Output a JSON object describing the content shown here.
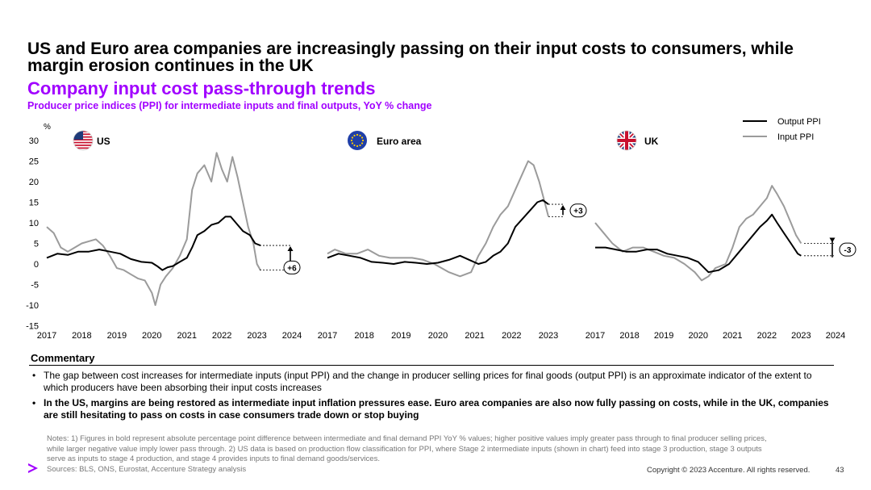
{
  "title": "US and Euro area companies are increasingly passing on their input costs to consumers, while margin erosion continues in the UK",
  "subtitle": "Company input cost pass-through trends",
  "chart_subtitle": "Producer price indices (PPI) for intermediate inputs and final outputs, YoY % change",
  "colors": {
    "accent": "#a100ff",
    "output": "#000000",
    "input": "#9b9b9b"
  },
  "chart_data": {
    "type": "line",
    "unit_label": "%",
    "ylim": [
      -15,
      30
    ],
    "yticks": [
      "30",
      "25",
      "20",
      "15",
      "10",
      "5",
      "0",
      "-5",
      "-10",
      "-15"
    ],
    "legend": [
      "Output PPI",
      "Input PPI"
    ],
    "legend_position": "top-right",
    "panels": [
      {
        "name": "US",
        "flag": "us-flag",
        "xticks": [
          "2017",
          "2018",
          "2019",
          "2020",
          "2021",
          "2022",
          "2023",
          "2024"
        ],
        "gap_label": "+6",
        "series": [
          {
            "name": "Output PPI",
            "x": [
              2017.0,
              2017.3,
              2017.6,
              2017.9,
              2018.2,
              2018.5,
              2018.8,
              2019.1,
              2019.4,
              2019.7,
              2020.0,
              2020.15,
              2020.3,
              2020.45,
              2020.6,
              2020.8,
              2021.0,
              2021.15,
              2021.3,
              2021.5,
              2021.7,
              2021.9,
              2022.1,
              2022.25,
              2022.4,
              2022.6,
              2022.8,
              2022.95,
              2023.1
            ],
            "y": [
              1.5,
              2.5,
              2.2,
              3.0,
              3.0,
              3.5,
              3.0,
              2.5,
              1.2,
              0.5,
              0.3,
              -0.5,
              -1.5,
              -0.8,
              -0.5,
              0.5,
              1.5,
              4.0,
              7.0,
              8.0,
              9.5,
              10.0,
              11.5,
              11.5,
              10.0,
              8.0,
              7.0,
              5.0,
              4.5
            ]
          },
          {
            "name": "Input PPI",
            "x": [
              2017.0,
              2017.2,
              2017.4,
              2017.6,
              2017.8,
              2018.0,
              2018.2,
              2018.4,
              2018.6,
              2018.8,
              2019.0,
              2019.2,
              2019.4,
              2019.6,
              2019.8,
              2020.0,
              2020.1,
              2020.25,
              2020.4,
              2020.6,
              2020.8,
              2021.0,
              2021.15,
              2021.3,
              2021.5,
              2021.7,
              2021.85,
              2022.0,
              2022.15,
              2022.3,
              2022.45,
              2022.6,
              2022.75,
              2022.9,
              2023.0,
              2023.1
            ],
            "y": [
              9.0,
              7.5,
              4.0,
              3.0,
              4.0,
              5.0,
              5.5,
              6.0,
              4.5,
              2.0,
              -1.0,
              -1.5,
              -2.5,
              -3.5,
              -4.0,
              -7.0,
              -10.0,
              -5.0,
              -3.0,
              -1.0,
              2.0,
              6.0,
              18.0,
              22.0,
              24.0,
              20.0,
              27.0,
              23.0,
              20.0,
              26.0,
              21.0,
              15.0,
              9.0,
              5.0,
              0.0,
              -1.5
            ]
          }
        ]
      },
      {
        "name": "Euro area",
        "flag": "eu-flag",
        "xticks": [
          "2017",
          "2018",
          "2019",
          "2020",
          "2021",
          "2022",
          "2023"
        ],
        "gap_label": "+3",
        "series": [
          {
            "name": "Output PPI",
            "x": [
              2017.0,
              2017.3,
              2017.6,
              2017.9,
              2018.2,
              2018.5,
              2018.8,
              2019.1,
              2019.4,
              2019.7,
              2020.0,
              2020.3,
              2020.6,
              2020.9,
              2021.1,
              2021.3,
              2021.5,
              2021.7,
              2021.9,
              2022.1,
              2022.3,
              2022.5,
              2022.7,
              2022.85,
              2023.0
            ],
            "y": [
              1.5,
              2.5,
              2.0,
              1.5,
              0.5,
              0.3,
              0.0,
              0.5,
              0.3,
              0.0,
              0.3,
              1.0,
              2.0,
              0.8,
              0.0,
              0.5,
              2.0,
              3.0,
              5.0,
              9.0,
              11.0,
              13.0,
              15.0,
              15.5,
              14.5
            ]
          },
          {
            "name": "Input PPI",
            "x": [
              2017.0,
              2017.2,
              2017.5,
              2017.8,
              2018.1,
              2018.4,
              2018.7,
              2019.0,
              2019.3,
              2019.6,
              2019.9,
              2020.1,
              2020.3,
              2020.6,
              2020.9,
              2021.1,
              2021.3,
              2021.5,
              2021.7,
              2021.9,
              2022.1,
              2022.3,
              2022.45,
              2022.6,
              2022.75,
              2022.9,
              2023.0
            ],
            "y": [
              2.5,
              3.5,
              2.5,
              2.5,
              3.5,
              2.0,
              1.5,
              1.5,
              1.5,
              1.0,
              0.0,
              -1.0,
              -2.0,
              -3.0,
              -2.0,
              2.0,
              5.0,
              9.0,
              12.0,
              14.0,
              18.0,
              22.0,
              25.0,
              24.0,
              20.0,
              15.0,
              11.5
            ]
          }
        ]
      },
      {
        "name": "UK",
        "flag": "uk-flag",
        "xticks": [
          "2017",
          "2018",
          "2019",
          "2020",
          "2021",
          "2022",
          "2023",
          "2024"
        ],
        "gap_label": "-3",
        "series": [
          {
            "name": "Output PPI",
            "x": [
              2017.0,
              2017.3,
              2017.6,
              2017.9,
              2018.2,
              2018.5,
              2018.8,
              2019.1,
              2019.4,
              2019.7,
              2020.0,
              2020.3,
              2020.6,
              2020.9,
              2021.2,
              2021.4,
              2021.6,
              2021.8,
              2022.0,
              2022.15,
              2022.3,
              2022.5,
              2022.7,
              2022.9,
              2023.0
            ],
            "y": [
              4.0,
              4.0,
              3.5,
              3.0,
              3.0,
              3.5,
              3.5,
              2.5,
              2.0,
              1.5,
              0.5,
              -2.0,
              -1.5,
              0.0,
              3.0,
              5.0,
              7.0,
              9.0,
              10.5,
              12.0,
              10.0,
              7.5,
              5.0,
              2.5,
              2.0
            ]
          },
          {
            "name": "Input PPI",
            "x": [
              2017.0,
              2017.2,
              2017.5,
              2017.8,
              2018.1,
              2018.4,
              2018.7,
              2019.0,
              2019.3,
              2019.6,
              2019.9,
              2020.1,
              2020.3,
              2020.5,
              2020.8,
              2021.0,
              2021.2,
              2021.4,
              2021.6,
              2021.8,
              2022.0,
              2022.15,
              2022.3,
              2022.5,
              2022.7,
              2022.85,
              2023.0
            ],
            "y": [
              10.0,
              8.0,
              5.0,
              3.0,
              4.0,
              4.0,
              3.0,
              2.0,
              1.5,
              0.0,
              -2.0,
              -4.0,
              -3.0,
              -1.0,
              0.0,
              4.0,
              9.0,
              11.0,
              12.0,
              14.0,
              16.0,
              19.0,
              17.0,
              14.0,
              10.0,
              7.0,
              5.0
            ]
          }
        ]
      }
    ]
  },
  "commentary": {
    "heading": "Commentary",
    "bullets": [
      "The gap between cost increases for intermediate inputs (input PPI) and the change in producer selling prices for final goods (output PPI) is an approximate indicator of the extent to which producers have been absorbing their input costs increases",
      "In the US, margins are being restored as intermediate input inflation pressures ease. Euro area companies are also now fully passing on costs, while in the UK, companies are still hesitating to pass on costs in case consumers trade down or stop buying"
    ]
  },
  "notes": "Notes: 1) Figures in bold represent absolute percentage point difference between intermediate and final demand PPI YoY % values; higher positive values imply greater pass through to final producer selling prices, while larger negative value imply lower pass through. 2) US data is based on production flow classification for PPI, where Stage 2 intermediate inputs (shown in chart) feed into stage 3 production, stage 3 outputs serve as inputs to stage 4 production, and stage 4 provides inputs to final demand goods/services.",
  "sources": "Sources: BLS, ONS, Eurostat, Accenture Strategy analysis",
  "copyright": "Copyright © 2023 Accenture. All rights reserved.",
  "page_number": "43"
}
